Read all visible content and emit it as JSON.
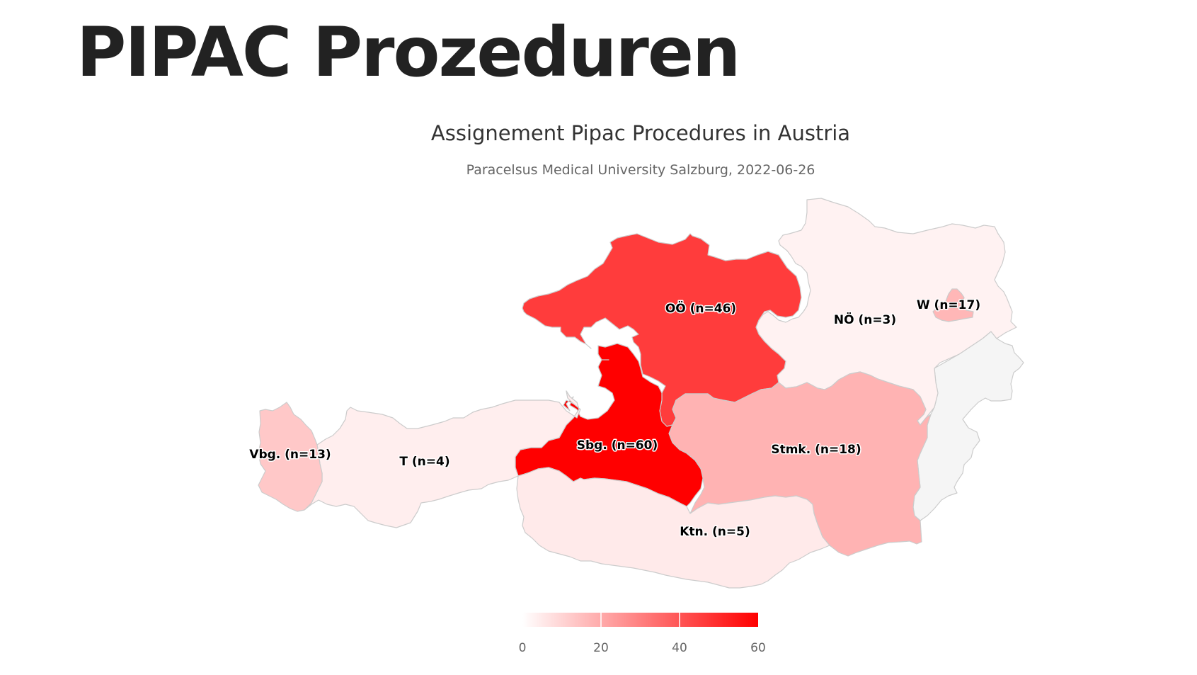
{
  "page": {
    "title": "PIPAC Prozeduren"
  },
  "chart": {
    "title": "Assignement Pipac Procedures in Austria",
    "subtitle": "Paracelsus Medical University Salzburg, 2022-06-26"
  },
  "chart_data": {
    "type": "choropleth",
    "title": "Assignement Pipac Procedures in Austria",
    "subtitle": "Paracelsus Medical University Salzburg, 2022-06-26",
    "color_min": "#ffffff",
    "color_max": "#ff0000",
    "no_data_color": "#f5f5f5",
    "range": [
      0,
      60
    ],
    "regions": [
      {
        "id": "vbg",
        "label": "Vbg. (n=13)",
        "value": 13
      },
      {
        "id": "t",
        "label": "T (n=4)",
        "value": 4
      },
      {
        "id": "sbg",
        "label": "Sbg. (n=60)",
        "value": 60
      },
      {
        "id": "ooe",
        "label": "OÖ (n=46)",
        "value": 46
      },
      {
        "id": "noe",
        "label": "NÖ (n=3)",
        "value": 3
      },
      {
        "id": "w",
        "label": "W (n=17)",
        "value": 17
      },
      {
        "id": "stmk",
        "label": "Stmk. (n=18)",
        "value": 18
      },
      {
        "id": "ktn",
        "label": "Ktn. (n=5)",
        "value": 5
      },
      {
        "id": "bgld",
        "label": "",
        "value": null
      }
    ],
    "legend": {
      "ticks": [
        "0",
        "20",
        "40",
        "60"
      ]
    }
  }
}
